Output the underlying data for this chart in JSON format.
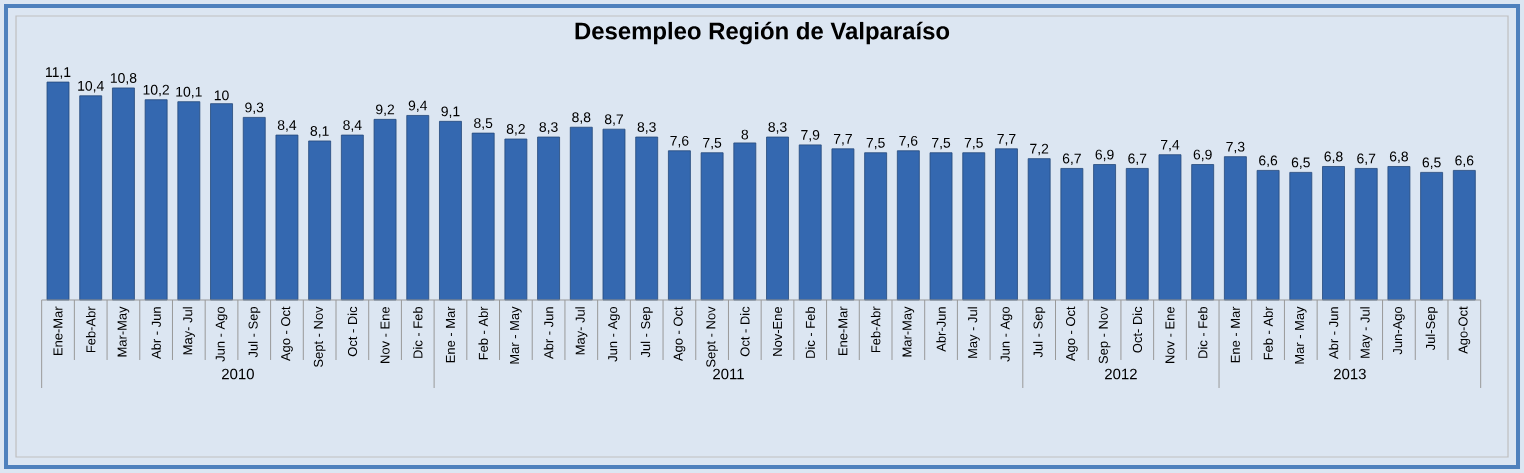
{
  "chart_data": {
    "type": "bar",
    "title": "Desempleo Región de Valparaíso",
    "categories": [
      "Ene-Mar",
      "Feb-Abr",
      "Mar-May",
      "Abr - Jun",
      "May- Jul",
      "Jun - Ago",
      "Jul - Sep",
      "Ago - Oct",
      "Sept - Nov",
      "Oct - Dic",
      "Nov - Ene",
      "Dic - Feb",
      "Ene - Mar",
      "Feb - Abr",
      "Mar - May",
      "Abr - Jun",
      "May- Jul",
      "Jun - Ago",
      "Jul - Sep",
      "Ago - Oct",
      "Sept - Nov",
      "Oct - Dic",
      "Nov-Ene",
      "Dic - Feb",
      "Ene-Mar",
      "Feb-Abr",
      "Mar-May",
      "Abr-Jun",
      "May - Jul",
      "Jun - Ago",
      "Jul - Sep",
      "Ago - Oct",
      "Sep - Nov",
      "Oct- Dic",
      "Nov - Ene",
      "Dic - Feb",
      "Ene - Mar",
      "Feb - Abr",
      "Mar - May",
      "Abr - Jun",
      "May - Jul",
      "Jun-Ago",
      "Jul-Sep",
      "Ago-Oct"
    ],
    "values": [
      11.1,
      10.4,
      10.8,
      10.2,
      10.1,
      10,
      9.3,
      8.4,
      8.1,
      8.4,
      9.2,
      9.4,
      9.1,
      8.5,
      8.2,
      8.3,
      8.8,
      8.7,
      8.3,
      7.6,
      7.5,
      8,
      8.3,
      7.9,
      7.7,
      7.5,
      7.6,
      7.5,
      7.5,
      7.7,
      7.2,
      6.7,
      6.9,
      6.7,
      7.4,
      6.9,
      7.3,
      6.6,
      6.5,
      6.8,
      6.7,
      6.8,
      6.5,
      6.6
    ],
    "value_labels": [
      "11,1",
      "10,4",
      "10,8",
      "10,2",
      "10,1",
      "10",
      "9,3",
      "8,4",
      "8,1",
      "8,4",
      "9,2",
      "9,4",
      "9,1",
      "8,5",
      "8,2",
      "8,3",
      "8,8",
      "8,7",
      "8,3",
      "7,6",
      "7,5",
      "8",
      "8,3",
      "7,9",
      "7,7",
      "7,5",
      "7,6",
      "7,5",
      "7,5",
      "7,7",
      "7,2",
      "6,7",
      "6,9",
      "6,7",
      "7,4",
      "6,9",
      "7,3",
      "6,6",
      "6,5",
      "6,8",
      "6,7",
      "6,8",
      "6,5",
      "6,6"
    ],
    "color": "#3468b0",
    "annotations": [
      "2010",
      "2011",
      "2012",
      "2013"
    ]
  }
}
